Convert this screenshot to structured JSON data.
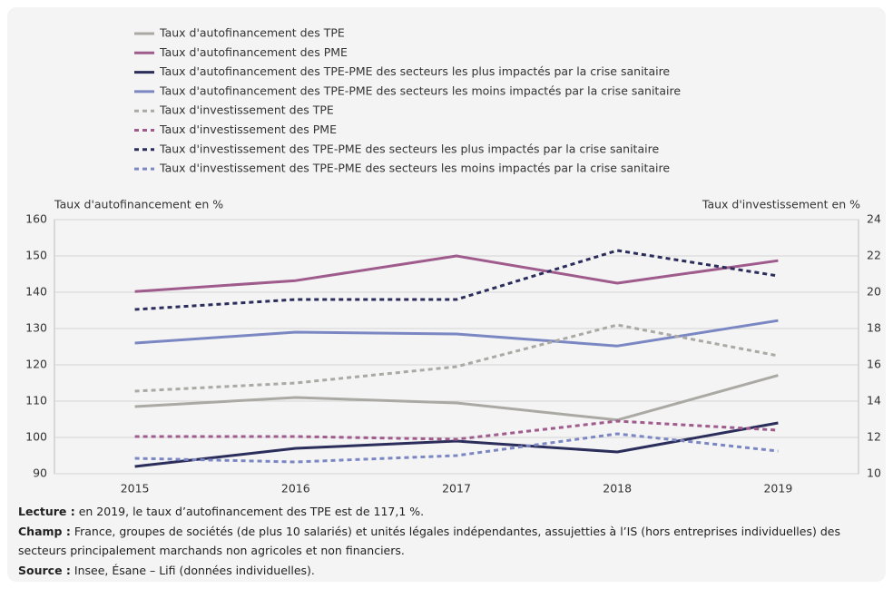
{
  "chart_data": {
    "type": "line",
    "ylabel": "Taux d'autofinancement en %",
    "y2label": "Taux d'investissement en %",
    "categories": [
      "2015",
      "2016",
      "2017",
      "2018",
      "2019"
    ],
    "ylim": [
      90,
      160
    ],
    "yticks": [
      90,
      100,
      110,
      120,
      130,
      140,
      150,
      160
    ],
    "y2lim": [
      10,
      24
    ],
    "y2ticks": [
      10,
      12,
      14,
      16,
      18,
      20,
      22,
      24
    ],
    "grid": true,
    "series": [
      {
        "name": "Taux d'autofinancement des TPE",
        "color": "#aaa9a4",
        "style": "solid",
        "values": [
          108.5,
          111,
          109.5,
          104.8,
          117.1
        ]
      },
      {
        "name": "Taux d'autofinancement des PME",
        "color": "#9e5b8c",
        "style": "solid",
        "values": [
          140.2,
          143.2,
          150,
          142.5,
          148.7
        ]
      },
      {
        "name": "Taux d'autofinancement des TPE-PME des secteurs les plus impactés par la crise sanitaire",
        "color": "#2b2d5b",
        "style": "solid",
        "values": [
          92,
          97,
          99,
          96,
          104
        ]
      },
      {
        "name": "Taux d'autofinancement des TPE-PME des secteurs les moins impactés par la crise sanitaire",
        "color": "#7b87c3",
        "style": "solid",
        "values": [
          126,
          129,
          128.5,
          125.2,
          132.2
        ]
      },
      {
        "name": "Taux d'investissement des TPE",
        "color": "#aaa9a4",
        "style": "dashed",
        "axis": "y2",
        "values": [
          14.55,
          15,
          15.9,
          18.2,
          16.5
        ]
      },
      {
        "name": "Taux d'investissement des PME",
        "color": "#9e5b8c",
        "style": "dashed",
        "axis": "y2",
        "values": [
          12.05,
          12.05,
          11.9,
          12.9,
          12.4
        ]
      },
      {
        "name": "Taux d'investissement des TPE-PME des secteurs les plus impactés par la crise sanitaire",
        "color": "#2b2d5b",
        "style": "dashed",
        "axis": "y2",
        "values": [
          19.05,
          19.6,
          19.6,
          22.3,
          20.9
        ]
      },
      {
        "name": "Taux d'investissement des TPE-PME des secteurs les moins impactés par la crise sanitaire",
        "color": "#7b87c3",
        "style": "dashed",
        "axis": "y2",
        "values": [
          10.85,
          10.65,
          11,
          12.2,
          11.25
        ]
      }
    ]
  },
  "notes": [
    {
      "label": "Lecture :",
      "text": "en 2019, le taux d’autofinancement des TPE est de 117,1 %."
    },
    {
      "label": "Champ :",
      "text": "France, groupes de sociétés (de plus 10 salariés) et unités légales indépendantes, assujetties à l’IS (hors entreprises individuelles) des secteurs principalement marchands non agricoles et non financiers."
    },
    {
      "label": "Source :",
      "text": "Insee, Ésane – Lifi (données individuelles)."
    }
  ]
}
